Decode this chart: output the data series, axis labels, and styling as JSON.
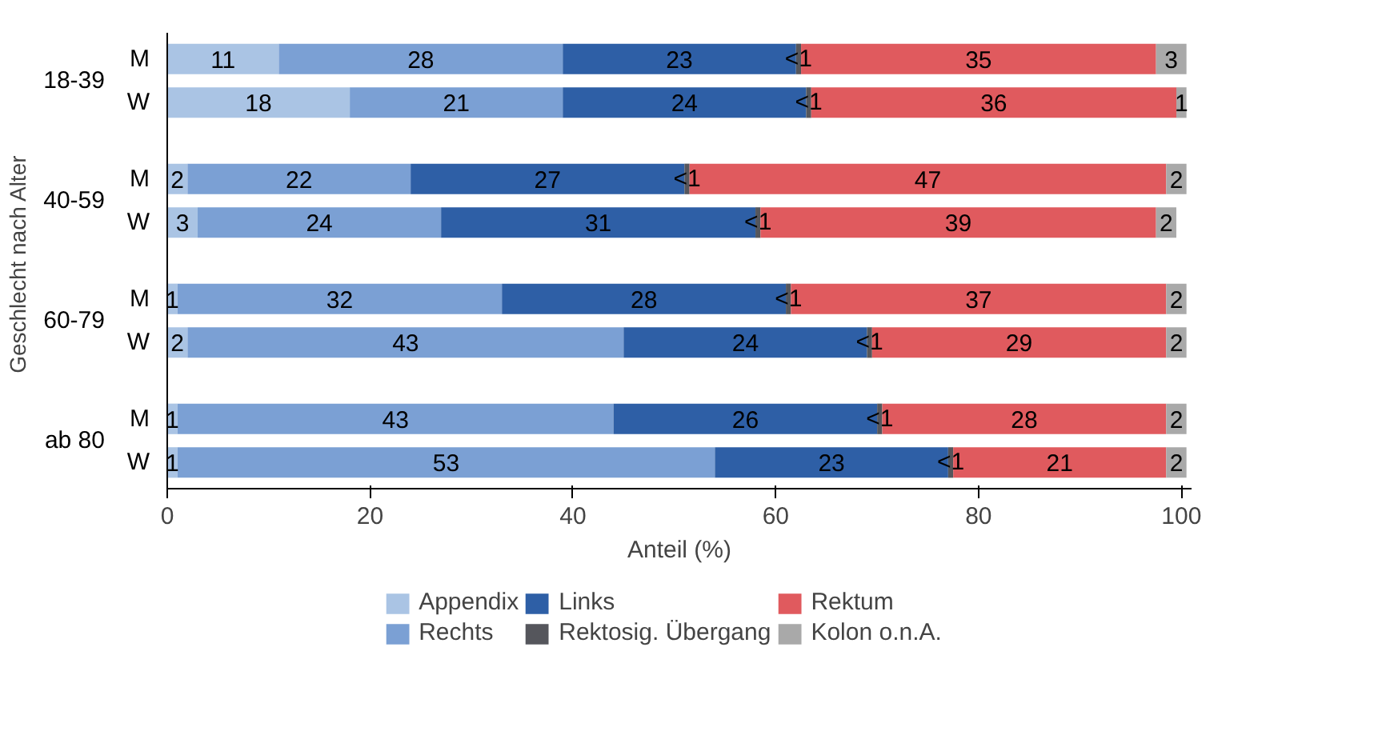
{
  "chart_data": {
    "type": "bar",
    "orientation": "horizontal",
    "stacked": true,
    "categories": [
      "M",
      "W",
      "M",
      "W",
      "M",
      "W",
      "M",
      "W"
    ],
    "annotations": [
      "18-39",
      "40-59",
      "60-79",
      "ab 80"
    ],
    "xlabel": "Anteil (%)",
    "ylabel": "Geschlecht  nach Alter",
    "xlim": [
      0,
      101
    ],
    "xticks": [
      0,
      20,
      40,
      60,
      80,
      100
    ],
    "grid": false,
    "legend": "bottom",
    "series": [
      {
        "name": "Appendix",
        "color": "#aac4e4",
        "values": [
          11,
          18,
          2,
          3,
          1,
          2,
          1,
          1
        ],
        "value_labels": [
          "11",
          "18",
          "2",
          "3",
          "1",
          "2",
          "1",
          "1"
        ]
      },
      {
        "name": "Rechts",
        "color": "#7ba0d4",
        "values": [
          28,
          21,
          22,
          24,
          32,
          43,
          43,
          53
        ],
        "value_labels": [
          "28",
          "21",
          "22",
          "24",
          "32",
          "43",
          "43",
          "53"
        ]
      },
      {
        "name": "Links",
        "color": "#2e5fa6",
        "values": [
          23,
          24,
          27,
          31,
          28,
          24,
          26,
          23
        ],
        "value_labels": [
          "23",
          "24",
          "27",
          "31",
          "28",
          "24",
          "26",
          "23"
        ]
      },
      {
        "name": "Rektosig. Übergang",
        "color": "#55565c",
        "values": [
          0.5,
          0.5,
          0.5,
          0.5,
          0.5,
          0.5,
          0.5,
          0.5
        ],
        "value_labels": [
          "<1",
          "<1",
          "<1",
          "<1",
          "<1",
          "<1",
          "<1",
          "<1"
        ]
      },
      {
        "name": "Rektum",
        "color": "#e05a5e",
        "values": [
          35,
          36,
          47,
          39,
          37,
          29,
          28,
          21
        ],
        "value_labels": [
          "35",
          "36",
          "47",
          "39",
          "37",
          "29",
          "28",
          "21"
        ]
      },
      {
        "name": "Kolon o.n.A.",
        "color": "#a9a9a9",
        "values": [
          3,
          1,
          2,
          2,
          2,
          2,
          2,
          2
        ],
        "value_labels": [
          "3",
          "1",
          "2",
          "2",
          "2",
          "2",
          "2",
          "2"
        ]
      }
    ]
  }
}
